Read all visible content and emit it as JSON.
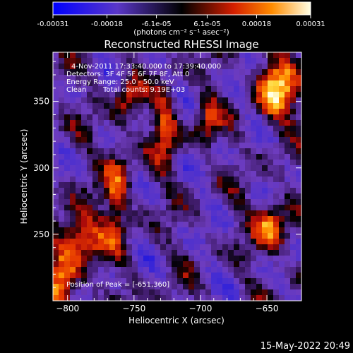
{
  "colorbar": {
    "ticks": [
      "-0.00031",
      "-0.00018",
      "-6.1e-05",
      "6.1e-05",
      "0.00018",
      "0.00031"
    ],
    "units": "(photons cm⁻² s⁻¹ asec⁻²)",
    "range": [
      -0.00031,
      0.00031
    ]
  },
  "footer": {
    "timestamp": "15-May-2022 20:49"
  },
  "chart_data": {
    "type": "heatmap",
    "title": "Reconstructed RHESSI Image",
    "xlabel": "Heliocentric X (arcsec)",
    "ylabel": "Heliocentric Y (arcsec)",
    "xlim": [
      -811,
      -624
    ],
    "ylim": [
      200,
      387
    ],
    "xticks": [
      -800,
      -750,
      -700,
      -650
    ],
    "yticks": [
      250,
      300,
      350
    ],
    "annotations": {
      "time": "4-Nov-2011 17:33:40.000 to 17:39:40.000",
      "detectors": "Detectors: 3F 4F 5F 6F 7F 8F, Att 0",
      "energy": "Energy Range: 25.0 - 50.0 keV",
      "method": "Clean",
      "counts": "Total counts: 9.19E+03",
      "peak": "Position of Peak = [-651,360]"
    },
    "peak": [
      -651,
      360
    ],
    "grid": false
  }
}
